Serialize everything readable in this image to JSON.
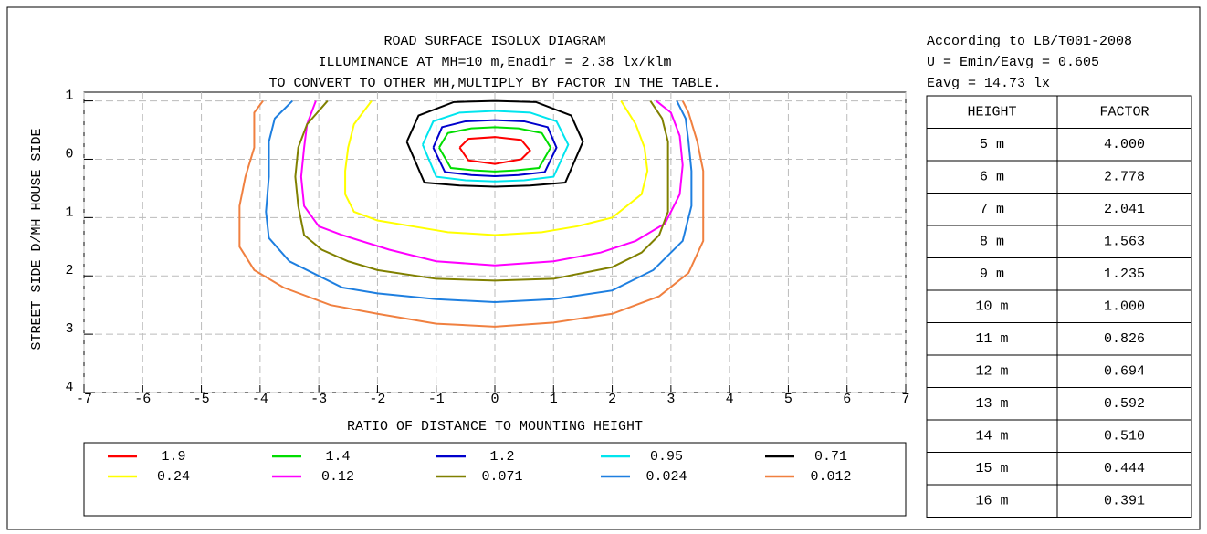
{
  "chart_data": {
    "type": "contour",
    "title": [
      "ROAD SURFACE ISOLUX DIAGRAM",
      "ILLUMINANCE AT MH=10 m,Enadir  = 2.38 lx/klm",
      "TO CONVERT TO OTHER MH,MULTIPLY BY FACTOR IN THE TABLE."
    ],
    "x_label": "RATIO OF DISTANCE TO MOUNTING HEIGHT",
    "y_label": "STREET SIDE   D/MH   HOUSE SIDE",
    "xlim": [
      -7,
      7
    ],
    "xticks": [
      -7,
      -6,
      -5,
      -4,
      -3,
      -2,
      -1,
      0,
      1,
      2,
      3,
      4,
      5,
      6,
      7
    ],
    "ylim": [
      -1.15,
      4
    ],
    "yticks": [
      {
        "value": -1,
        "label": "1"
      },
      0,
      1,
      2,
      3,
      4
    ],
    "y_reversed": true,
    "grid": true,
    "series": [
      {
        "name": "1.9",
        "color": "#ff0000",
        "x": [
          -0.6,
          -0.45,
          0,
          0.45,
          0.6,
          0.45,
          0,
          -0.45,
          -0.6
        ],
        "values": [
          -0.2,
          -0.35,
          -0.38,
          -0.33,
          -0.15,
          0,
          0.08,
          0.02,
          -0.2
        ]
      },
      {
        "name": "1.4",
        "color": "#00dd00",
        "x": [
          -0.95,
          -0.8,
          -0.4,
          0,
          0.4,
          0.8,
          0.95,
          0.75,
          0.35,
          0,
          -0.35,
          -0.75,
          -0.95
        ],
        "values": [
          -0.2,
          -0.45,
          -0.53,
          -0.55,
          -0.53,
          -0.45,
          -0.2,
          0.15,
          0.19,
          0.21,
          0.19,
          0.15,
          -0.2
        ]
      },
      {
        "name": "1.2",
        "color": "#0000cc",
        "x": [
          -1.05,
          -0.9,
          -0.5,
          0,
          0.5,
          0.9,
          1.05,
          0.85,
          0.4,
          0,
          -0.4,
          -0.85,
          -1.05
        ],
        "values": [
          -0.2,
          -0.55,
          -0.65,
          -0.67,
          -0.65,
          -0.55,
          -0.2,
          0.22,
          0.27,
          0.29,
          0.27,
          0.22,
          -0.2
        ]
      },
      {
        "name": "0.95",
        "color": "#00e5ee",
        "x": [
          -1.23,
          -1.05,
          -0.6,
          0,
          0.6,
          1.05,
          1.25,
          1.0,
          0.5,
          0,
          -0.5,
          -1.0,
          -1.23
        ],
        "values": [
          -0.25,
          -0.65,
          -0.8,
          -0.83,
          -0.8,
          -0.65,
          -0.25,
          0.3,
          0.36,
          0.38,
          0.36,
          0.3,
          -0.25
        ]
      },
      {
        "name": "0.71",
        "color": "#000000",
        "x": [
          -1.5,
          -1.3,
          -0.7,
          0,
          0.7,
          1.3,
          1.5,
          1.2,
          0.6,
          0,
          -0.6,
          -1.2,
          -1.5
        ],
        "values": [
          -0.3,
          -0.75,
          -0.98,
          -1.0,
          -0.98,
          -0.75,
          -0.3,
          0.4,
          0.45,
          0.47,
          0.45,
          0.4,
          -0.3
        ]
      },
      {
        "name": "0.24",
        "color": "#ffff00",
        "x": [
          -2.1,
          -2.4,
          -2.5,
          -2.55,
          -2.55,
          -2.4,
          -2,
          -1.4,
          -0.8,
          0,
          0.8,
          1.4,
          2,
          2.5,
          2.6,
          2.55,
          2.4,
          2.15
        ],
        "values": [
          -1,
          -0.6,
          -0.2,
          0.2,
          0.6,
          0.9,
          1.05,
          1.15,
          1.25,
          1.3,
          1.25,
          1.15,
          1.0,
          0.6,
          0.2,
          -0.2,
          -0.6,
          -1
        ]
      },
      {
        "name": "0.12",
        "color": "#ff00ff",
        "x": [
          -3.05,
          -3.2,
          -3.25,
          -3.3,
          -3.25,
          -3.0,
          -2.6,
          -1.8,
          -1,
          0,
          1,
          1.8,
          2.4,
          2.9,
          3.15,
          3.2,
          3.15,
          3.0,
          2.75
        ],
        "values": [
          -1,
          -0.6,
          -0.2,
          0.3,
          0.8,
          1.15,
          1.3,
          1.55,
          1.75,
          1.82,
          1.75,
          1.6,
          1.4,
          1.1,
          0.6,
          0.1,
          -0.4,
          -0.8,
          -1
        ]
      },
      {
        "name": "0.071",
        "color": "#808000",
        "x": [
          -2.85,
          -3.2,
          -3.35,
          -3.4,
          -3.35,
          -3.25,
          -2.95,
          -2.5,
          -2,
          -1,
          0,
          1,
          2,
          2.5,
          2.8,
          2.95,
          2.95,
          2.95,
          2.85,
          2.65
        ],
        "values": [
          -1,
          -0.6,
          -0.2,
          0.3,
          0.8,
          1.3,
          1.55,
          1.75,
          1.9,
          2.05,
          2.08,
          2.05,
          1.85,
          1.6,
          1.3,
          0.9,
          0.3,
          -0.3,
          -0.7,
          -1
        ]
      },
      {
        "name": "0.024",
        "color": "#1e7fe0",
        "x": [
          -3.45,
          -3.75,
          -3.85,
          -3.85,
          -3.9,
          -3.85,
          -3.5,
          -2.6,
          -2,
          -1,
          0,
          1,
          2,
          2.7,
          3.2,
          3.35,
          3.35,
          3.3,
          3.25,
          3.1
        ],
        "values": [
          -1,
          -0.7,
          -0.3,
          0.3,
          0.9,
          1.35,
          1.75,
          2.2,
          2.3,
          2.4,
          2.45,
          2.4,
          2.25,
          1.9,
          1.4,
          0.8,
          0.2,
          -0.3,
          -0.7,
          -1
        ]
      },
      {
        "name": "0.012",
        "color": "#f08040",
        "x": [
          -3.95,
          -4.1,
          -4.1,
          -4.25,
          -4.35,
          -4.35,
          -4.1,
          -3.6,
          -2.8,
          -2,
          -1,
          0,
          1,
          2,
          2.8,
          3.3,
          3.55,
          3.55,
          3.55,
          3.45,
          3.3,
          3.2
        ],
        "values": [
          -1,
          -0.8,
          -0.2,
          0.3,
          0.8,
          1.5,
          1.9,
          2.2,
          2.5,
          2.65,
          2.82,
          2.87,
          2.8,
          2.65,
          2.35,
          1.95,
          1.4,
          0.8,
          0.2,
          -0.3,
          -0.8,
          -1
        ]
      }
    ]
  },
  "info": {
    "lines": [
      "According to LB/T001-2008",
      "U = Emin/Eavg = 0.605",
      "Eavg = 14.73 lx"
    ],
    "table": {
      "header": [
        "HEIGHT",
        "FACTOR"
      ],
      "rows": [
        [
          "5 m",
          "4.000"
        ],
        [
          "6 m",
          "2.778"
        ],
        [
          "7 m",
          "2.041"
        ],
        [
          "8 m",
          "1.563"
        ],
        [
          "9 m",
          "1.235"
        ],
        [
          "10 m",
          "1.000"
        ],
        [
          "11 m",
          "0.826"
        ],
        [
          "12 m",
          "0.694"
        ],
        [
          "13 m",
          "0.592"
        ],
        [
          "14 m",
          "0.510"
        ],
        [
          "15 m",
          "0.444"
        ],
        [
          "16 m",
          "0.391"
        ]
      ]
    }
  }
}
